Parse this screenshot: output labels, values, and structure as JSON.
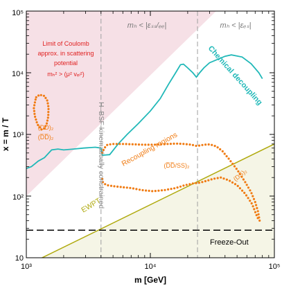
{
  "chart_data": {
    "type": "line",
    "title": "",
    "xlabel": "m  [GeV]",
    "ylabel": "x = m / T",
    "x_scale": "log",
    "y_scale": "log",
    "xlim": [
      1000,
      100000
    ],
    "ylim": [
      10,
      100000
    ],
    "x_ticks": [
      1000,
      10000,
      100000
    ],
    "x_tick_labels": [
      "10³",
      "10⁴",
      "10⁵"
    ],
    "y_ticks": [
      10,
      100,
      1000,
      10000,
      100000
    ],
    "y_tick_labels": [
      "10",
      "10²",
      "10³",
      "10⁴",
      "10⁵"
    ],
    "grid": false,
    "colors": {
      "chemical": "#20b8b8",
      "recoupling": "#f07c14",
      "ewpt": "#b0aa0e",
      "coulomb_text": "#e02020",
      "coulomb_region": "#f6e0e6",
      "ewpt_region": "#f5f5e6",
      "guide_line": "#a6a6a6"
    },
    "series": [
      {
        "name": "Chemical decoupling",
        "style": "solid",
        "x": [
          1000,
          1100,
          1250,
          1400,
          1600,
          1800,
          2000,
          2400,
          2900,
          3600,
          4000,
          4100,
          4700,
          5500,
          6500,
          8000,
          10000,
          12000,
          14000,
          16000,
          17500,
          18500,
          20000,
          22000,
          23500,
          25000,
          27000,
          30000,
          35000,
          40000,
          45000,
          55000,
          65000,
          75000,
          80000
        ],
        "y": [
          280,
          300,
          370,
          420,
          560,
          580,
          560,
          580,
          600,
          620,
          600,
          460,
          470,
          700,
          1000,
          1500,
          2400,
          3800,
          6500,
          10000,
          13500,
          13800,
          12000,
          10000,
          8500,
          10000,
          12000,
          14500,
          16500,
          18500,
          19500,
          18000,
          14000,
          10000,
          8000
        ]
      },
      {
        "name": "(DD)_B",
        "style": "dotted",
        "x": [
          1200,
          1280,
          1400,
          1480,
          1510,
          1500,
          1460,
          1400,
          1320,
          1230,
          1170,
          1150,
          1180,
          1200
        ],
        "y": [
          4000,
          4400,
          4200,
          3500,
          2700,
          1900,
          1500,
          1250,
          1200,
          1450,
          2000,
          2700,
          3500,
          4000
        ]
      },
      {
        "name": "(D̅D̅/SS)_B",
        "style": "dotted",
        "x": [
          4100,
          4250,
          4500,
          5000,
          6000,
          7500,
          9000,
          10500,
          12000,
          14000,
          16500,
          19000,
          21500,
          23500,
          25000,
          27000,
          29000,
          31000,
          34000,
          38000,
          43000,
          50000,
          58000,
          65000,
          70000,
          74000,
          76000,
          73000,
          66000,
          58000,
          50000,
          43000,
          37000,
          32000,
          28000,
          25000,
          22000,
          19000,
          16000,
          13000,
          10500,
          8500,
          7000,
          5800,
          5000,
          4500,
          4200,
          4100,
          4100
        ],
        "y": [
          500,
          600,
          680,
          700,
          700,
          690,
          680,
          680,
          690,
          700,
          710,
          700,
          680,
          650,
          660,
          680,
          690,
          680,
          640,
          540,
          400,
          270,
          170,
          115,
          80,
          55,
          40,
          45,
          75,
          110,
          150,
          180,
          200,
          190,
          175,
          165,
          160,
          150,
          135,
          125,
          120,
          125,
          135,
          140,
          145,
          150,
          160,
          175,
          200
        ]
      },
      {
        "name": "EWPT",
        "style": "solid",
        "x": [
          1000,
          100000
        ],
        "y": [
          7.5,
          700
        ]
      },
      {
        "name": "Freeze-Out",
        "style": "dashed",
        "x": [
          1000,
          100000
        ],
        "y": [
          28,
          28
        ]
      }
    ],
    "vertical_lines": [
      {
        "x": 4000,
        "label": "H–BSF kinematically constrained"
      },
      {
        "x": 24000,
        "label": ""
      }
    ],
    "annotations": {
      "coulomb_line1": "Limit of Coulomb",
      "coulomb_line2": "approx. in scattering",
      "coulomb_line3": "potential",
      "coulomb_formula": "mₕ² > (μ² vₑₗ²)",
      "region_ss_dd": "mₕ < |εₛₛ/ₑₑ|",
      "region_ds": "mₕ < |εₑₛ|",
      "chemical": "Chemical decoupling",
      "dd_b": "(DD)₂",
      "dbardbar_b": "(D̅D̅)₂",
      "recoupling": "Recoupling regions",
      "dbar_ss_b": "(D̅D̅/SS)₂",
      "ds_b": "(DS)₂",
      "ewpt": "EWPT",
      "freeze_out": "Freeze-Out",
      "hbsf": "H–BSF kinematically constrained"
    }
  }
}
